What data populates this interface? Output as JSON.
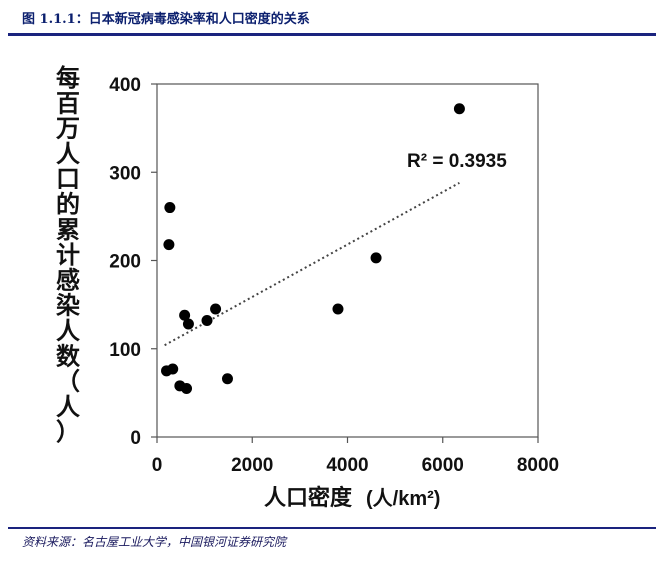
{
  "figure_title": "图 1.1.1：日本新冠病毒感染率和人口密度的关系",
  "source": "资料来源：名古屋工业大学，中国银河证券研究院",
  "chart_data": {
    "type": "scatter",
    "xlabel": "人口密度",
    "xlabel_unit": "(人/km²)",
    "ylabel_chars": [
      "每",
      "百",
      "万",
      "人",
      "口",
      "的",
      "累",
      "计",
      "感",
      "染",
      "人",
      "数",
      "（",
      "人",
      "）"
    ],
    "xlim": [
      0,
      8000
    ],
    "ylim": [
      0,
      400
    ],
    "xticks": [
      0,
      2000,
      4000,
      6000,
      8000
    ],
    "yticks": [
      0,
      100,
      200,
      300,
      400
    ],
    "points": [
      {
        "x": 270,
        "y": 260
      },
      {
        "x": 250,
        "y": 218
      },
      {
        "x": 200,
        "y": 75
      },
      {
        "x": 330,
        "y": 77
      },
      {
        "x": 480,
        "y": 58
      },
      {
        "x": 620,
        "y": 55
      },
      {
        "x": 580,
        "y": 138
      },
      {
        "x": 660,
        "y": 128
      },
      {
        "x": 1050,
        "y": 132
      },
      {
        "x": 1230,
        "y": 145
      },
      {
        "x": 1480,
        "y": 66
      },
      {
        "x": 3800,
        "y": 145
      },
      {
        "x": 4600,
        "y": 203
      },
      {
        "x": 6350,
        "y": 372
      }
    ],
    "trendline": {
      "x": [
        160,
        6350
      ],
      "y": [
        104,
        288
      ]
    },
    "annotation": "R² = 0.3935",
    "grid": false,
    "legend": "none",
    "colors": {
      "points": "#000000",
      "trendline": "#444444",
      "accent": "#1a237e"
    }
  }
}
